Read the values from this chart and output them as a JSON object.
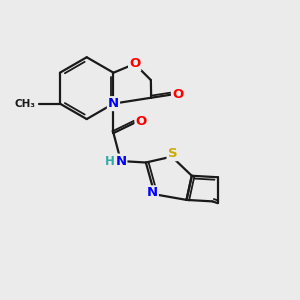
{
  "background_color": "#ebebeb",
  "bond_color": "#1a1a1a",
  "atom_colors": {
    "O": "#ff0000",
    "N": "#0000ff",
    "S": "#ccaa00",
    "NH": "#33aaaa",
    "H": "#33aaaa",
    "C": "#1a1a1a"
  },
  "figsize": [
    3.0,
    3.0
  ],
  "dpi": 100,
  "scale": 1.0
}
